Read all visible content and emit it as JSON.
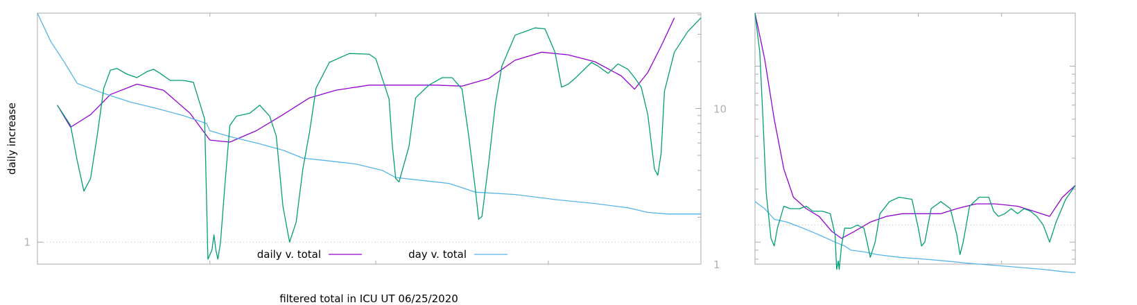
{
  "colors": {
    "daily_v_total": "#9400d3",
    "day_v_total": "#56b4e9",
    "filtered": "#009e73",
    "reference": "#c8c8c8",
    "frame": "#a8a8a8"
  },
  "chart_data": [
    {
      "type": "line",
      "title": "",
      "xlabel": "filtered total in ICU UT 06/25/2020",
      "ylabel": "daily increase",
      "xlim": [
        0,
        1
      ],
      "ylim_left": [
        0.75,
        20
      ],
      "ylim_right": [
        1,
        41
      ],
      "yscale": "log",
      "left_ticks": [
        {
          "value": 1,
          "label": "1"
        }
      ],
      "right_ticks": [
        {
          "value": 1,
          "label": "1"
        },
        {
          "value": 10,
          "label": "10"
        }
      ],
      "reference_y": 1,
      "legend": {
        "placement": "bottom-center",
        "entries": [
          {
            "label": "daily v. total",
            "series": "daily_v_total"
          },
          {
            "label": "day v. total",
            "series": "day_v_total"
          }
        ]
      },
      "series": [
        {
          "name": "daily v. total",
          "axis": "left",
          "color_key": "daily_v_total",
          "points": [
            [
              0.03,
              6.0
            ],
            [
              0.05,
              4.5
            ],
            [
              0.08,
              5.3
            ],
            [
              0.11,
              6.9
            ],
            [
              0.15,
              7.9
            ],
            [
              0.19,
              7.3
            ],
            [
              0.23,
              5.4
            ],
            [
              0.26,
              3.8
            ],
            [
              0.29,
              3.7
            ],
            [
              0.33,
              4.3
            ],
            [
              0.37,
              5.3
            ],
            [
              0.41,
              6.6
            ],
            [
              0.45,
              7.3
            ],
            [
              0.5,
              7.8
            ],
            [
              0.55,
              7.8
            ],
            [
              0.6,
              7.8
            ],
            [
              0.64,
              7.7
            ],
            [
              0.68,
              8.5
            ],
            [
              0.72,
              10.8
            ],
            [
              0.76,
              12.0
            ],
            [
              0.8,
              11.6
            ],
            [
              0.84,
              10.6
            ],
            [
              0.88,
              8.8
            ],
            [
              0.9,
              7.4
            ],
            [
              0.92,
              9.2
            ],
            [
              0.94,
              13.0
            ],
            [
              0.96,
              18.8
            ]
          ]
        },
        {
          "name": "day v. total",
          "axis": "right",
          "color_key": "day_v_total",
          "points": [
            [
              0.0,
              41.0
            ],
            [
              0.02,
              27.0
            ],
            [
              0.04,
              20.0
            ],
            [
              0.06,
              14.5
            ],
            [
              0.1,
              12.5
            ],
            [
              0.14,
              11.0
            ],
            [
              0.18,
              10.0
            ],
            [
              0.22,
              9.0
            ],
            [
              0.255,
              8.0
            ],
            [
              0.26,
              7.2
            ],
            [
              0.29,
              6.6
            ],
            [
              0.33,
              6.0
            ],
            [
              0.37,
              5.4
            ],
            [
              0.4,
              4.8
            ],
            [
              0.44,
              4.6
            ],
            [
              0.48,
              4.4
            ],
            [
              0.52,
              4.0
            ],
            [
              0.54,
              3.6
            ],
            [
              0.58,
              3.45
            ],
            [
              0.62,
              3.3
            ],
            [
              0.64,
              3.1
            ],
            [
              0.66,
              2.9
            ],
            [
              0.72,
              2.8
            ],
            [
              0.78,
              2.6
            ],
            [
              0.84,
              2.45
            ],
            [
              0.89,
              2.3
            ],
            [
              0.92,
              2.15
            ],
            [
              0.95,
              2.1
            ],
            [
              1.0,
              2.1
            ]
          ]
        },
        {
          "name": "",
          "axis": "left",
          "color_key": "filtered",
          "points": [
            [
              0.03,
              6.0
            ],
            [
              0.05,
              4.6
            ],
            [
              0.06,
              2.9
            ],
            [
              0.07,
              1.95
            ],
            [
              0.08,
              2.3
            ],
            [
              0.09,
              4.0
            ],
            [
              0.1,
              7.5
            ],
            [
              0.11,
              9.5
            ],
            [
              0.12,
              9.7
            ],
            [
              0.135,
              9.0
            ],
            [
              0.15,
              8.6
            ],
            [
              0.165,
              9.3
            ],
            [
              0.175,
              9.6
            ],
            [
              0.185,
              9.1
            ],
            [
              0.2,
              8.3
            ],
            [
              0.22,
              8.3
            ],
            [
              0.235,
              8.1
            ],
            [
              0.252,
              5.0
            ],
            [
              0.257,
              0.8
            ],
            [
              0.263,
              0.9
            ],
            [
              0.266,
              1.1
            ],
            [
              0.269,
              0.9
            ],
            [
              0.272,
              0.8
            ],
            [
              0.276,
              1.0
            ],
            [
              0.282,
              2.0
            ],
            [
              0.29,
              4.6
            ],
            [
              0.3,
              5.2
            ],
            [
              0.32,
              5.4
            ],
            [
              0.335,
              6.0
            ],
            [
              0.35,
              5.2
            ],
            [
              0.36,
              4.0
            ],
            [
              0.37,
              1.6
            ],
            [
              0.38,
              1.0
            ],
            [
              0.39,
              1.3
            ],
            [
              0.4,
              2.6
            ],
            [
              0.41,
              4.2
            ],
            [
              0.42,
              7.5
            ],
            [
              0.44,
              10.5
            ],
            [
              0.47,
              11.8
            ],
            [
              0.5,
              11.7
            ],
            [
              0.51,
              11.0
            ],
            [
              0.53,
              6.5
            ],
            [
              0.535,
              3.5
            ],
            [
              0.54,
              2.3
            ],
            [
              0.545,
              2.2
            ],
            [
              0.56,
              3.5
            ],
            [
              0.57,
              6.6
            ],
            [
              0.59,
              7.8
            ],
            [
              0.61,
              8.6
            ],
            [
              0.625,
              8.6
            ],
            [
              0.64,
              7.4
            ],
            [
              0.65,
              4.0
            ],
            [
              0.66,
              2.0
            ],
            [
              0.665,
              1.35
            ],
            [
              0.67,
              1.4
            ],
            [
              0.68,
              2.8
            ],
            [
              0.69,
              6.0
            ],
            [
              0.7,
              10.0
            ],
            [
              0.72,
              15.0
            ],
            [
              0.75,
              16.5
            ],
            [
              0.765,
              16.3
            ],
            [
              0.78,
              12.0
            ],
            [
              0.79,
              7.6
            ],
            [
              0.8,
              7.9
            ],
            [
              0.81,
              8.5
            ],
            [
              0.835,
              10.5
            ],
            [
              0.845,
              10.0
            ],
            [
              0.86,
              9.1
            ],
            [
              0.875,
              10.3
            ],
            [
              0.89,
              9.6
            ],
            [
              0.9,
              8.6
            ],
            [
              0.91,
              7.6
            ],
            [
              0.92,
              5.3
            ],
            [
              0.93,
              2.6
            ],
            [
              0.935,
              2.4
            ],
            [
              0.94,
              3.2
            ],
            [
              0.945,
              7.2
            ],
            [
              0.96,
              12.0
            ],
            [
              0.98,
              15.7
            ],
            [
              1.0,
              18.8
            ]
          ]
        }
      ]
    },
    {
      "type": "line",
      "title": "",
      "xlabel": "",
      "ylabel": "",
      "xlim": [
        0,
        1
      ],
      "ylim": [
        0.75,
        20
      ],
      "yscale": "log",
      "reference_y": 1.25,
      "series": [
        {
          "name": "daily v. total",
          "color_key": "daily_v_total",
          "points": [
            [
              0.0,
              20.0
            ],
            [
              0.03,
              11.0
            ],
            [
              0.06,
              5.0
            ],
            [
              0.09,
              2.6
            ],
            [
              0.12,
              1.8
            ],
            [
              0.16,
              1.55
            ],
            [
              0.2,
              1.4
            ],
            [
              0.24,
              1.15
            ],
            [
              0.27,
              1.05
            ],
            [
              0.31,
              1.15
            ],
            [
              0.36,
              1.3
            ],
            [
              0.41,
              1.4
            ],
            [
              0.46,
              1.45
            ],
            [
              0.52,
              1.45
            ],
            [
              0.58,
              1.45
            ],
            [
              0.63,
              1.55
            ],
            [
              0.69,
              1.65
            ],
            [
              0.75,
              1.65
            ],
            [
              0.82,
              1.6
            ],
            [
              0.87,
              1.5
            ],
            [
              0.92,
              1.4
            ],
            [
              0.96,
              1.8
            ],
            [
              1.0,
              2.1
            ]
          ]
        },
        {
          "name": "day v. total",
          "color_key": "day_v_total",
          "points": [
            [
              0.0,
              1.7
            ],
            [
              0.03,
              1.55
            ],
            [
              0.06,
              1.35
            ],
            [
              0.1,
              1.3
            ],
            [
              0.15,
              1.2
            ],
            [
              0.2,
              1.1
            ],
            [
              0.25,
              1.0
            ],
            [
              0.28,
              0.95
            ],
            [
              0.3,
              0.9
            ],
            [
              0.34,
              0.88
            ],
            [
              0.38,
              0.85
            ],
            [
              0.45,
              0.82
            ],
            [
              0.53,
              0.8
            ],
            [
              0.6,
              0.78
            ],
            [
              0.66,
              0.76
            ],
            [
              0.74,
              0.74
            ],
            [
              0.82,
              0.72
            ],
            [
              0.9,
              0.7
            ],
            [
              0.96,
              0.68
            ],
            [
              1.0,
              0.67
            ]
          ]
        },
        {
          "name": "",
          "color_key": "filtered",
          "points": [
            [
              0.0,
              20.0
            ],
            [
              0.015,
              12.0
            ],
            [
              0.025,
              5.0
            ],
            [
              0.035,
              1.9
            ],
            [
              0.05,
              1.05
            ],
            [
              0.06,
              0.95
            ],
            [
              0.07,
              1.2
            ],
            [
              0.09,
              1.6
            ],
            [
              0.11,
              1.55
            ],
            [
              0.14,
              1.55
            ],
            [
              0.16,
              1.6
            ],
            [
              0.18,
              1.5
            ],
            [
              0.21,
              1.5
            ],
            [
              0.235,
              1.45
            ],
            [
              0.25,
              1.1
            ],
            [
              0.255,
              0.7
            ],
            [
              0.26,
              0.78
            ],
            [
              0.263,
              0.7
            ],
            [
              0.27,
              0.95
            ],
            [
              0.28,
              1.2
            ],
            [
              0.3,
              1.2
            ],
            [
              0.32,
              1.25
            ],
            [
              0.34,
              1.2
            ],
            [
              0.35,
              1.0
            ],
            [
              0.36,
              0.82
            ],
            [
              0.375,
              1.0
            ],
            [
              0.39,
              1.45
            ],
            [
              0.42,
              1.7
            ],
            [
              0.45,
              1.8
            ],
            [
              0.49,
              1.75
            ],
            [
              0.51,
              1.2
            ],
            [
              0.52,
              0.95
            ],
            [
              0.53,
              1.0
            ],
            [
              0.55,
              1.55
            ],
            [
              0.58,
              1.7
            ],
            [
              0.61,
              1.55
            ],
            [
              0.63,
              1.1
            ],
            [
              0.64,
              0.85
            ],
            [
              0.65,
              1.0
            ],
            [
              0.67,
              1.6
            ],
            [
              0.7,
              1.8
            ],
            [
              0.73,
              1.8
            ],
            [
              0.745,
              1.5
            ],
            [
              0.76,
              1.4
            ],
            [
              0.78,
              1.45
            ],
            [
              0.8,
              1.55
            ],
            [
              0.82,
              1.45
            ],
            [
              0.84,
              1.55
            ],
            [
              0.86,
              1.5
            ],
            [
              0.88,
              1.4
            ],
            [
              0.9,
              1.25
            ],
            [
              0.92,
              1.0
            ],
            [
              0.94,
              1.3
            ],
            [
              0.97,
              1.75
            ],
            [
              1.0,
              2.1
            ]
          ]
        }
      ]
    }
  ]
}
